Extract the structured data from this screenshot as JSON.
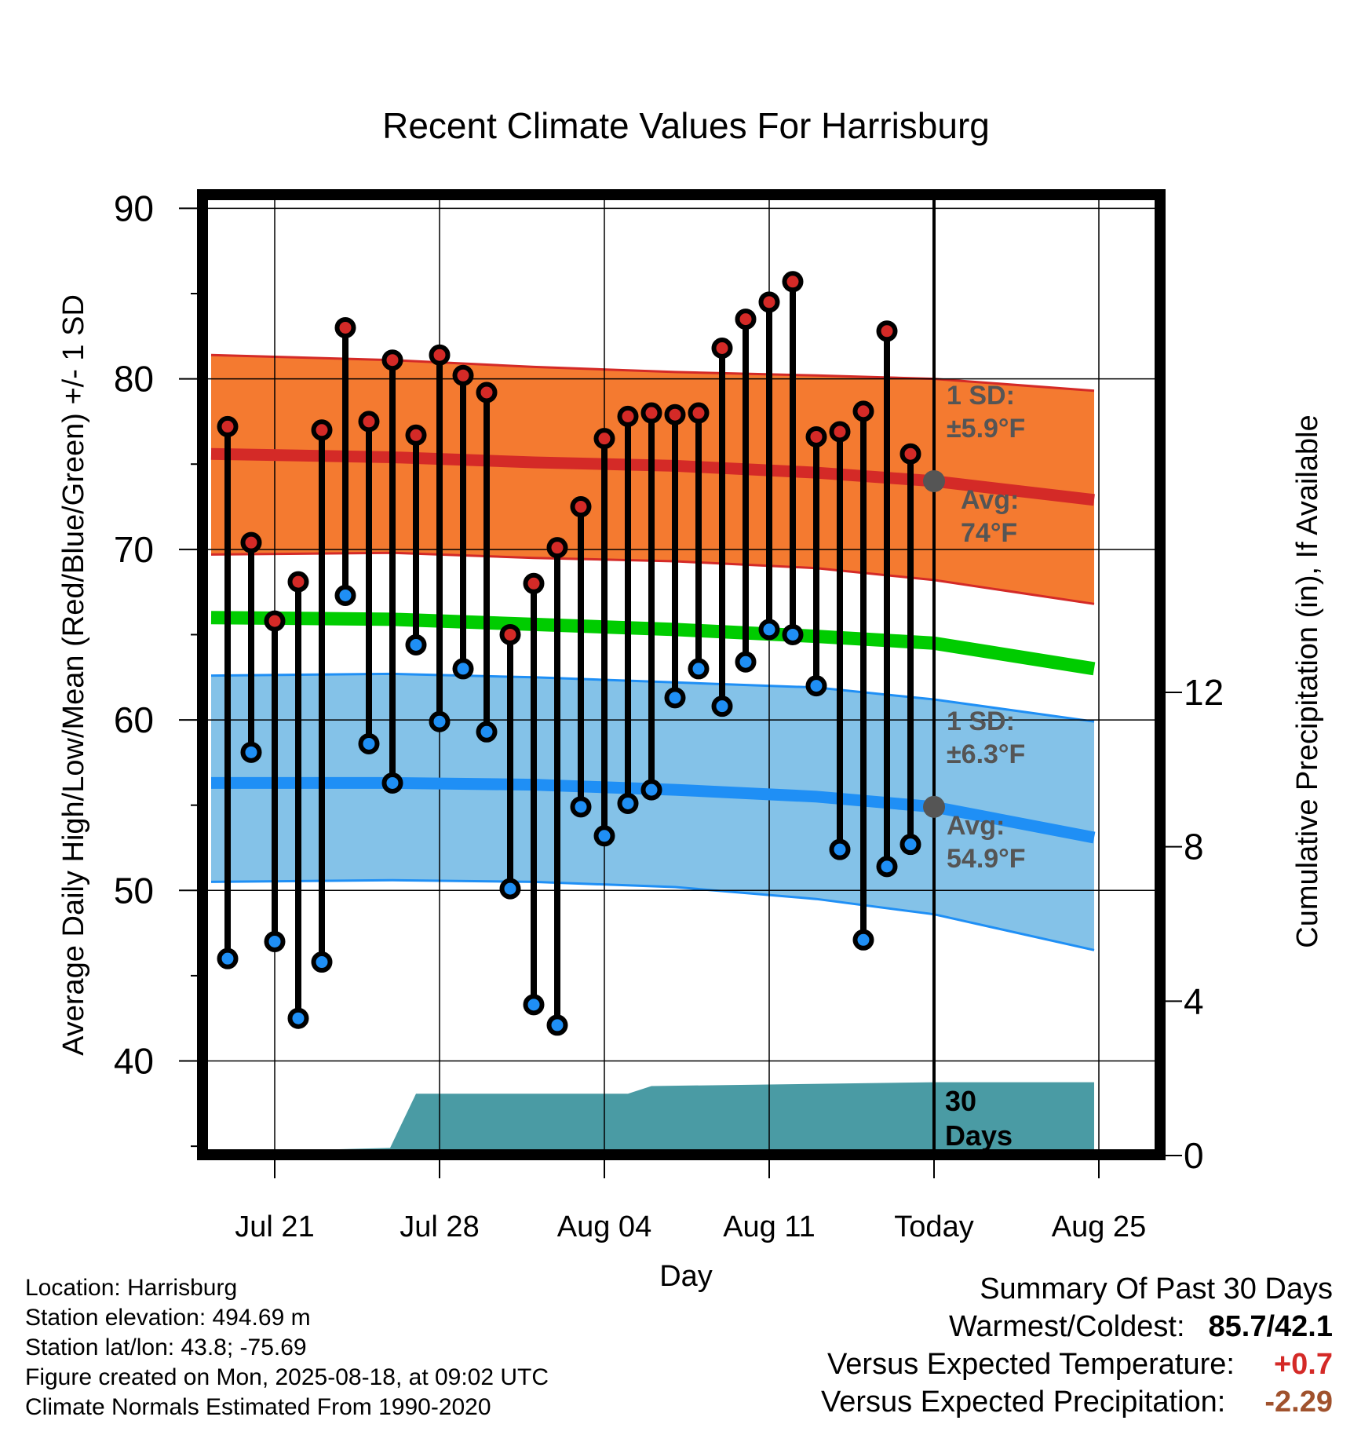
{
  "chart_data": {
    "type": "line",
    "title": "Recent Climate Values For Harrisburg",
    "xlabel": "Day",
    "ylabel": "Average Daily High/Low/Mean (Red/Blue/Green) +/- 1 SD",
    "y2label": "Cumulative Precipitation (in), If Available",
    "ylim": [
      34.5,
      90.8
    ],
    "y2lim": [
      0,
      25
    ],
    "y_ticks": [
      40,
      50,
      60,
      70,
      80,
      90
    ],
    "y2_ticks": [
      0,
      4,
      8,
      12
    ],
    "x_range": [
      -11.7,
      17.6
    ],
    "x_ticks": [
      {
        "day": -11,
        "label": "Jul 21"
      },
      {
        "day": -4,
        "label": "Jul 28"
      },
      {
        "day": 3,
        "label": "Aug 04"
      },
      {
        "day": 10,
        "label": "Aug 11"
      },
      {
        "day": 17,
        "label": "Today"
      },
      {
        "day": 24,
        "label": "Aug 25"
      }
    ],
    "highs": [
      {
        "day": -13,
        "value": 77.2
      },
      {
        "day": -12,
        "value": 70.4
      },
      {
        "day": -11,
        "value": 65.8
      },
      {
        "day": -10,
        "value": 68.1
      },
      {
        "day": -9,
        "value": 77.0
      },
      {
        "day": -8,
        "value": 83.0
      },
      {
        "day": -7,
        "value": 77.5
      },
      {
        "day": -6,
        "value": 81.1
      },
      {
        "day": -5,
        "value": 76.7
      },
      {
        "day": -4,
        "value": 81.4
      },
      {
        "day": -3,
        "value": 80.2
      },
      {
        "day": -2,
        "value": 79.2
      },
      {
        "day": -1,
        "value": 65.0
      },
      {
        "day": 0,
        "value": 68.0
      },
      {
        "day": 1,
        "value": 70.1
      },
      {
        "day": 2,
        "value": 72.5
      },
      {
        "day": 3,
        "value": 76.5
      },
      {
        "day": 4,
        "value": 77.8
      },
      {
        "day": 5,
        "value": 78.0
      },
      {
        "day": 6,
        "value": 77.9
      },
      {
        "day": 7,
        "value": 78.0
      },
      {
        "day": 8,
        "value": 81.8
      },
      {
        "day": 9,
        "value": 83.5
      },
      {
        "day": 10,
        "value": 84.5
      },
      {
        "day": 11,
        "value": 85.7
      },
      {
        "day": 12,
        "value": 76.6
      },
      {
        "day": 13,
        "value": 76.9
      },
      {
        "day": 14,
        "value": 78.1
      },
      {
        "day": 15,
        "value": 82.8
      },
      {
        "day": 16,
        "value": 75.6
      }
    ],
    "lows": [
      {
        "day": -13,
        "value": 46.0
      },
      {
        "day": -12,
        "value": 58.1
      },
      {
        "day": -11,
        "value": 47.0
      },
      {
        "day": -10,
        "value": 42.5
      },
      {
        "day": -9,
        "value": 45.8
      },
      {
        "day": -8,
        "value": 67.3
      },
      {
        "day": -7,
        "value": 58.6
      },
      {
        "day": -6,
        "value": 56.3
      },
      {
        "day": -5,
        "value": 64.4
      },
      {
        "day": -4,
        "value": 59.9
      },
      {
        "day": -3,
        "value": 63.0
      },
      {
        "day": -2,
        "value": 59.3
      },
      {
        "day": -1,
        "value": 50.1
      },
      {
        "day": 0,
        "value": 43.3
      },
      {
        "day": 1,
        "value": 42.1
      },
      {
        "day": 2,
        "value": 54.9
      },
      {
        "day": 3,
        "value": 53.2
      },
      {
        "day": 4,
        "value": 55.1
      },
      {
        "day": 5,
        "value": 55.9
      },
      {
        "day": 6,
        "value": 61.3
      },
      {
        "day": 7,
        "value": 63.0
      },
      {
        "day": 8,
        "value": 60.8
      },
      {
        "day": 9,
        "value": 63.4
      },
      {
        "day": 10,
        "value": 65.3
      },
      {
        "day": 11,
        "value": 65.0
      },
      {
        "day": 12,
        "value": 62.0
      },
      {
        "day": 13,
        "value": 52.4
      },
      {
        "day": 14,
        "value": 47.1
      },
      {
        "day": 15,
        "value": 51.4
      },
      {
        "day": 16,
        "value": 52.7
      }
    ],
    "normal_high": {
      "days": [
        -13.7,
        -6,
        0,
        6,
        12,
        17,
        23.8
      ],
      "mean": [
        75.6,
        75.4,
        75.1,
        74.9,
        74.5,
        74.0,
        72.9
      ],
      "upper": [
        81.4,
        81.1,
        80.7,
        80.4,
        80.2,
        80.0,
        79.3
      ],
      "lower": [
        69.7,
        69.8,
        69.5,
        69.3,
        68.9,
        68.2,
        66.8
      ]
    },
    "normal_low": {
      "days": [
        -13.7,
        -6,
        0,
        6,
        12,
        17,
        23.8
      ],
      "mean": [
        56.3,
        56.3,
        56.2,
        55.9,
        55.5,
        54.9,
        53.1
      ],
      "upper": [
        62.6,
        62.7,
        62.5,
        62.2,
        61.9,
        61.2,
        59.9
      ],
      "lower": [
        50.5,
        50.6,
        50.5,
        50.2,
        49.5,
        48.6,
        46.5
      ]
    },
    "normal_mean": {
      "days": [
        -13.7,
        -6,
        0,
        6,
        12,
        17,
        23.8
      ],
      "values": [
        66.0,
        65.9,
        65.6,
        65.3,
        64.9,
        64.5,
        63.0
      ]
    },
    "precipitation": {
      "days": [
        -13.7,
        -12,
        -6.1,
        -5,
        4,
        5,
        17,
        23.8
      ],
      "values": [
        0.0,
        0.1,
        0.2,
        1.6,
        1.6,
        1.8,
        1.9,
        1.9
      ]
    },
    "annotations": [
      {
        "line1": "1 SD:",
        "line2": "±5.9°F"
      },
      {
        "line1": "Avg:",
        "line2": "74°F"
      },
      {
        "line1": "1 SD:",
        "line2": "±6.3°F"
      },
      {
        "line1": "Avg:",
        "line2": "54.9°F"
      },
      {
        "line1": "30",
        "line2": "Days"
      }
    ],
    "colors": {
      "high_band": "#f47a30",
      "high_line": "#d42a27",
      "low_band": "#84c2e8",
      "low_line": "#1f8ff5",
      "mean_line": "#00cc00",
      "precip": "#4a9ba4",
      "high_marker": "#d42a27",
      "low_marker": "#1f8ff5",
      "today_marker": "#555555"
    }
  },
  "info": {
    "location": "Location: Harrisburg",
    "elevation": "Station elevation: 494.69 m",
    "latlon": "Station lat/lon: 43.8; -75.69",
    "created": "Figure created on Mon, 2025-08-18, at 09:02 UTC",
    "normals": "Climate Normals Estimated From 1990-2020"
  },
  "summary": {
    "title": "Summary Of Past 30 Days",
    "warm_cold_label": "Warmest/Coldest:",
    "warm_cold_value": "85.7/42.1",
    "temp_label": "Versus Expected Temperature:",
    "temp_value": "+0.7",
    "temp_color": "#d42a27",
    "precip_label": "Versus Expected Precipitation:",
    "precip_value": "-2.29",
    "precip_color": "#a0522d"
  }
}
